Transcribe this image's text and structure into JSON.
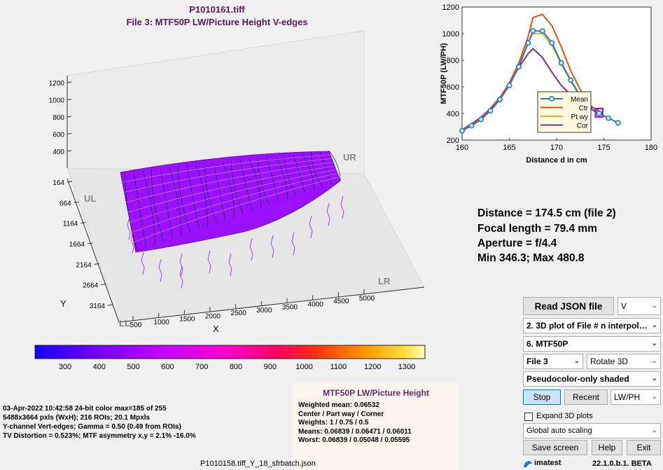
{
  "header": {
    "file_name": "P1010161.tiff",
    "subtitle": "File 3:   MTF50P LW/Picture Height   V-edges"
  },
  "surface_plot": {
    "z_ticks": [
      "1200",
      "1000",
      "800",
      "600",
      "400"
    ],
    "y_ticks": [
      "164",
      "664",
      "1164",
      "1664",
      "2164",
      "2664",
      "3164"
    ],
    "x_ticks": [
      "500",
      "1000",
      "1500",
      "2000",
      "2500",
      "3000",
      "3500",
      "4000",
      "4500",
      "5000"
    ],
    "x_axis_label": "X",
    "y_axis_label": "Y",
    "corner_labels": {
      "ul": "UL",
      "ur": "UR",
      "ll": "LL",
      "lr": "LR"
    },
    "surface_color": "#9a10ff"
  },
  "colorbar": {
    "ticks": [
      "300",
      "400",
      "500",
      "600",
      "700",
      "800",
      "900",
      "1000",
      "1100",
      "1200",
      "1300"
    ]
  },
  "chart_data": {
    "type": "line",
    "xlabel": "Distance d in cm",
    "ylabel": "MTF50P  (LW/PH)",
    "xlim": [
      160,
      180
    ],
    "ylim": [
      200,
      1200
    ],
    "x_ticks": [
      "160",
      "165",
      "170",
      "175",
      "180"
    ],
    "y_ticks": [
      "200",
      "400",
      "600",
      "800",
      "1000",
      "1200"
    ],
    "grid": false,
    "legend_position": "lower-right",
    "series": [
      {
        "name": "Mean",
        "color": "#2878b8",
        "markers": true,
        "x": [
          160,
          161,
          162,
          163,
          164,
          165,
          166,
          167,
          167.5,
          168.5,
          169.5,
          170.5,
          171.5,
          172.5,
          173.5,
          174.5,
          175.5,
          176.5
        ],
        "y": [
          270,
          308,
          355,
          420,
          505,
          610,
          750,
          930,
          1020,
          1020,
          930,
          780,
          650,
          530,
          440,
          400,
          365,
          330
        ]
      },
      {
        "name": "Ctr",
        "color": "#d95319",
        "markers": false,
        "x": [
          160,
          161,
          162,
          163,
          164,
          165,
          166,
          167,
          167.5,
          168.5,
          169.5,
          170.5,
          171.5,
          172.5,
          173.5,
          174.5
        ],
        "y": [
          275,
          315,
          365,
          430,
          520,
          630,
          780,
          980,
          1120,
          1145,
          1060,
          900,
          720,
          580,
          460,
          420
        ]
      },
      {
        "name": "Pt wy",
        "color": "#edb120",
        "markers": false,
        "x": [
          160,
          161,
          162,
          163,
          164,
          165,
          166,
          167,
          167.5,
          168.5,
          169.5,
          170.5,
          171.5,
          172.5,
          173.5,
          174.5
        ],
        "y": [
          272,
          310,
          358,
          422,
          508,
          615,
          760,
          940,
          1000,
          1000,
          910,
          770,
          640,
          530,
          445,
          410
        ]
      },
      {
        "name": "Cor",
        "color": "#7e2f8e",
        "markers": false,
        "x": [
          160,
          161,
          162,
          163,
          164,
          165,
          166,
          167,
          167.5,
          168.5,
          169.5,
          170.5,
          171.5,
          172.5,
          173.5,
          174.5
        ],
        "y": [
          278,
          322,
          372,
          438,
          520,
          620,
          745,
          850,
          888,
          820,
          710,
          610,
          540,
          490,
          440,
          395
        ]
      }
    ],
    "highlight": {
      "x": 174.5,
      "y": 405,
      "color": "#8a2ad6"
    }
  },
  "results": {
    "distance": "Distance = 174.5 cm  (file 2)",
    "focal_length": "Focal length = 79.4 mm",
    "aperture": "Aperture = f/4.4",
    "minmax": "Min 346.3;  Max 480.8"
  },
  "info": {
    "line1": "03-Apr-2022 10:42:58  24-bit color  max=185 of 255",
    "line2": "5488x3664 pxls (WxH);  216 ROIs;  20.1 Mpxls",
    "line3": "Y-channel  Vert-edges;   Gamma = 0.50  (0.49 from ROIs)",
    "line4": "TV Distortion = 0.523%;  MTF asymmetry x,y = 2.1%  -16.0%"
  },
  "summary_panel": {
    "title": "MTF50P LW/Picture Height",
    "weighted_mean": "Weighted mean: 0.06532",
    "position": "Center / Part way / Corner",
    "weights": "Weights: 1 / 0.75 / 0.5",
    "means": "Means:    0.06839 / 0.06471 / 0.06011",
    "worst": "Worst:     0.06839 / 0.05048 / 0.05595"
  },
  "controls": {
    "read_json": "Read JSON file",
    "channel": "V",
    "plot_type": "2. 3D plot of File # n interpola...",
    "measure": "6.  MTF50P",
    "file_select": "File 3",
    "rotate": "Rotate 3D",
    "shading": "Pseudocolor-only shaded",
    "stop": "Stop",
    "recent": "Recent",
    "units": "LW/PH",
    "expand_label": "Expand 3D plots",
    "scaling": "Global auto scaling",
    "save_screen": "Save screen",
    "help": "Help",
    "exit": "Exit",
    "brand": "imatest",
    "version": "22.1.0.b.1. BETA"
  },
  "footer": {
    "filename": "P1010158.tiff_Y_18_sfrbatch.json"
  }
}
